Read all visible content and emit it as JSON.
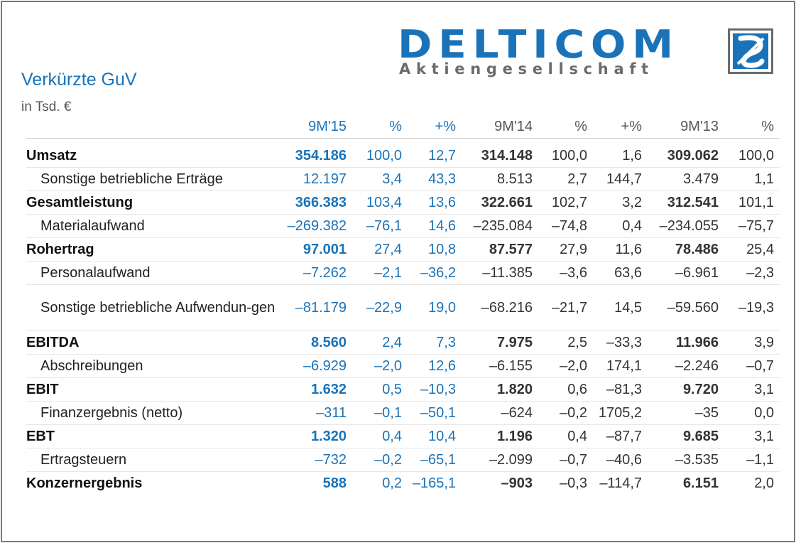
{
  "logo": {
    "name": "DELTICOM",
    "subtitle": "Aktiengesellschaft"
  },
  "title": "Verkürzte GuV",
  "unit": "in Tsd. €",
  "colors": {
    "accent": "#1a73b8",
    "text": "#333333",
    "frame": "#7a7a7a"
  },
  "table": {
    "headers": [
      "9M'15",
      "%",
      "+%",
      "9M'14",
      "%",
      "+%",
      "9M'13",
      "%"
    ],
    "rows": [
      {
        "label": "Umsatz",
        "main": true,
        "cells": [
          "354.186",
          "100,0",
          "12,7",
          "314.148",
          "100,0",
          "1,6",
          "309.062",
          "100,0"
        ]
      },
      {
        "label": "Sonstige betriebliche Erträge",
        "main": false,
        "cells": [
          "12.197",
          "3,4",
          "43,3",
          "8.513",
          "2,7",
          "144,7",
          "3.479",
          "1,1"
        ]
      },
      {
        "label": "Gesamtleistung",
        "main": true,
        "cells": [
          "366.383",
          "103,4",
          "13,6",
          "322.661",
          "102,7",
          "3,2",
          "312.541",
          "101,1"
        ]
      },
      {
        "label": "Materialaufwand",
        "main": false,
        "cells": [
          "–269.382",
          "–76,1",
          "14,6",
          "–235.084",
          "–74,8",
          "0,4",
          "–234.055",
          "–75,7"
        ]
      },
      {
        "label": "Rohertrag",
        "main": true,
        "cells": [
          "97.001",
          "27,4",
          "10,8",
          "87.577",
          "27,9",
          "11,6",
          "78.486",
          "25,4"
        ]
      },
      {
        "label": "Personalaufwand",
        "main": false,
        "cells": [
          "–7.262",
          "–2,1",
          "–36,2",
          "–11.385",
          "–3,6",
          "63,6",
          "–6.961",
          "–2,3"
        ]
      },
      {
        "label": "Sonstige betriebliche Aufwendun-gen",
        "main": false,
        "cells": [
          "–81.179",
          "–22,9",
          "19,0",
          "–68.216",
          "–21,7",
          "14,5",
          "–59.560",
          "–19,3"
        ]
      },
      {
        "label": "EBITDA",
        "main": true,
        "cells": [
          "8.560",
          "2,4",
          "7,3",
          "7.975",
          "2,5",
          "–33,3",
          "11.966",
          "3,9"
        ]
      },
      {
        "label": "Abschreibungen",
        "main": false,
        "cells": [
          "–6.929",
          "–2,0",
          "12,6",
          "–6.155",
          "–2,0",
          "174,1",
          "–2.246",
          "–0,7"
        ]
      },
      {
        "label": "EBIT",
        "main": true,
        "cells": [
          "1.632",
          "0,5",
          "–10,3",
          "1.820",
          "0,6",
          "–81,3",
          "9.720",
          "3,1"
        ]
      },
      {
        "label": "Finanzergebnis (netto)",
        "main": false,
        "cells": [
          "–311",
          "–0,1",
          "–50,1",
          "–624",
          "–0,2",
          "1705,2",
          "–35",
          "0,0"
        ]
      },
      {
        "label": "EBT",
        "main": true,
        "cells": [
          "1.320",
          "0,4",
          "10,4",
          "1.196",
          "0,4",
          "–87,7",
          "9.685",
          "3,1"
        ]
      },
      {
        "label": "Ertragsteuern",
        "main": false,
        "cells": [
          "–732",
          "–0,2",
          "–65,1",
          "–2.099",
          "–0,7",
          "–40,6",
          "–3.535",
          "–1,1"
        ]
      },
      {
        "label": "Konzernergebnis",
        "main": true,
        "cells": [
          "588",
          "0,2",
          "–165,1",
          "–903",
          "–0,3",
          "–114,7",
          "6.151",
          "2,0"
        ]
      }
    ]
  }
}
